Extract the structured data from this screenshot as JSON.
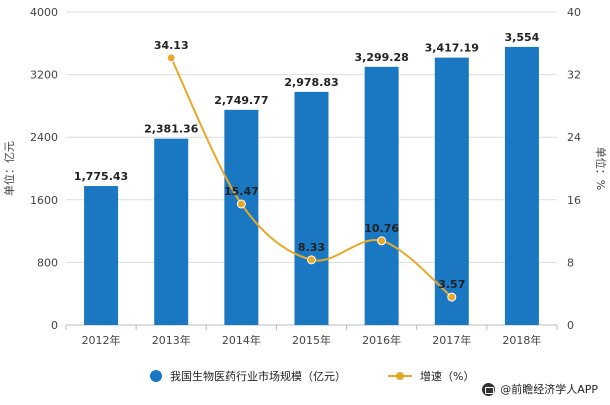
{
  "chart_data": {
    "type": "bar+line",
    "categories": [
      "2012年",
      "2013年",
      "2014年",
      "2015年",
      "2016年",
      "2017年",
      "2018年"
    ],
    "series": [
      {
        "name": "我国生物医药行业市场规模（亿元）",
        "type": "bar",
        "axis": "left",
        "values": [
          1775.43,
          2381.36,
          2749.77,
          2978.83,
          3299.28,
          3417.19,
          3554
        ],
        "labels": [
          "1,775.43",
          "2,381.36",
          "2,749.77",
          "2,978.83",
          "3,299.28",
          "3,417.19",
          "3,554"
        ],
        "color": "#1a78c2"
      },
      {
        "name": "增速（%）",
        "type": "line",
        "axis": "right",
        "values": [
          null,
          34.13,
          15.47,
          8.33,
          10.76,
          3.57,
          null
        ],
        "labels": [
          "",
          "34.13",
          "15.47",
          "8.33",
          "10.76",
          "3.57",
          ""
        ],
        "color": "#e8a92a"
      }
    ],
    "y_left": {
      "label": "单位：亿元",
      "range": [
        0,
        4000
      ],
      "ticks": [
        0,
        800,
        1600,
        2400,
        3200,
        4000
      ]
    },
    "y_right": {
      "label": "单位：%",
      "range": [
        0,
        40
      ],
      "ticks": [
        0,
        8,
        16,
        24,
        32,
        40
      ]
    },
    "legend_position": "bottom"
  },
  "legend": {
    "bar_label": "我国生物医药行业市场规模（亿元）",
    "line_label": "增速（%）"
  },
  "source": "@前瞻经济学人APP"
}
